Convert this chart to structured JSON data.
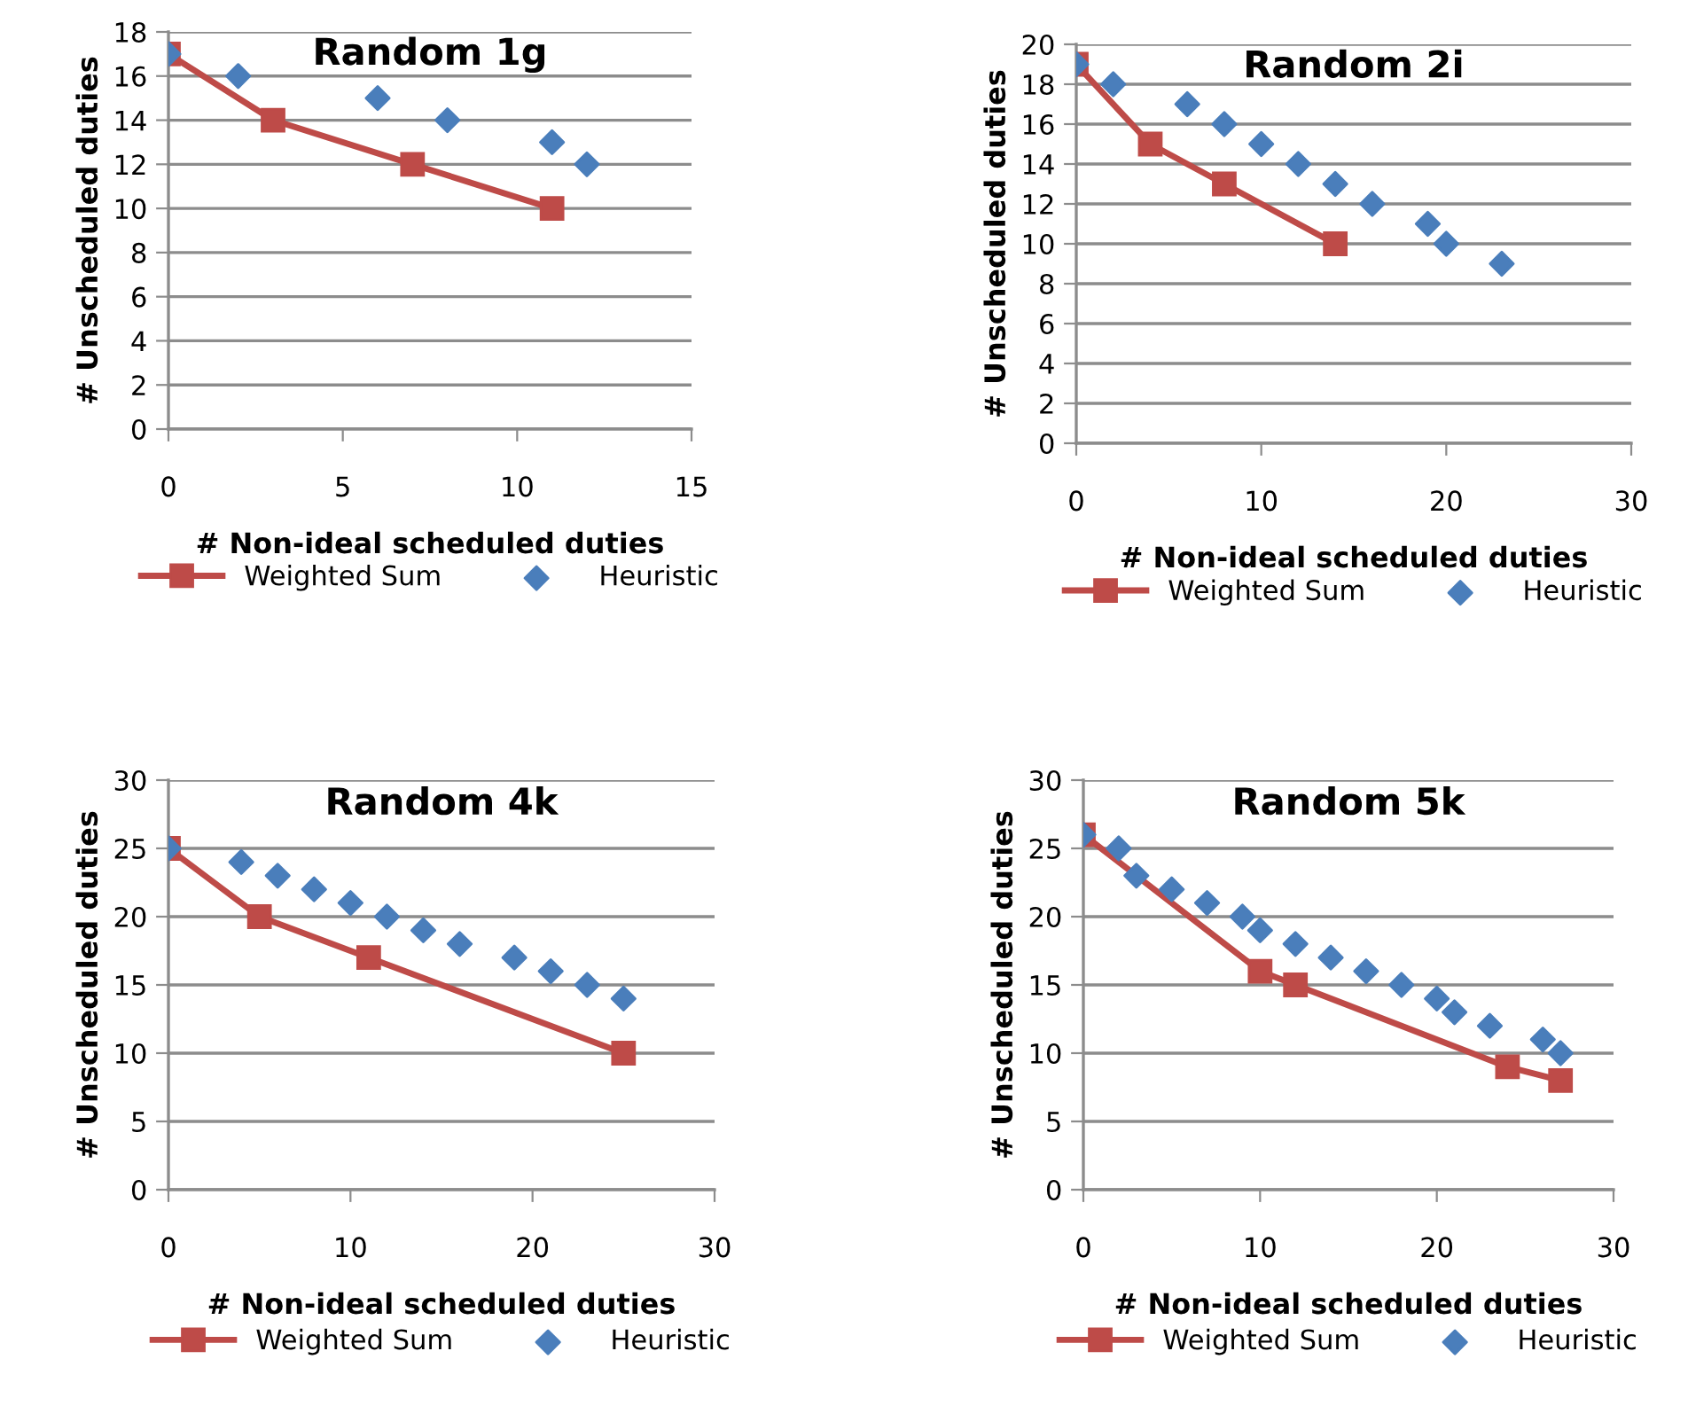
{
  "chart_data": [
    {
      "type": "line",
      "title": "Random 1g",
      "xlabel": "# Non-ideal scheduled duties",
      "ylabel": "# Unscheduled duties",
      "xlim": [
        0,
        15
      ],
      "xticks": [
        0,
        5,
        10,
        15
      ],
      "ylim": [
        0,
        18
      ],
      "yticks": [
        0,
        2,
        4,
        6,
        8,
        10,
        12,
        14,
        16,
        18
      ],
      "grid": "y",
      "legend": "bottom",
      "series": [
        {
          "name": "Weighted Sum",
          "marker": "square",
          "color": "#be4b48",
          "x": [
            0,
            3,
            7,
            11
          ],
          "values": [
            17,
            14,
            12,
            10
          ]
        },
        {
          "name": "Heuristic",
          "type": "scatter",
          "marker": "diamond",
          "color": "#4a7ebb",
          "x": [
            0,
            2,
            6,
            8,
            11,
            12
          ],
          "values": [
            17,
            16,
            15,
            14,
            13,
            12
          ]
        }
      ]
    },
    {
      "type": "line",
      "title": "Random 2i",
      "xlabel": "# Non-ideal scheduled duties",
      "ylabel": "# Unscheduled duties",
      "xlim": [
        0,
        30
      ],
      "xticks": [
        0,
        10,
        20,
        30
      ],
      "ylim": [
        0,
        20
      ],
      "yticks": [
        0,
        2,
        4,
        6,
        8,
        10,
        12,
        14,
        16,
        18,
        20
      ],
      "grid": "y",
      "legend": "bottom",
      "series": [
        {
          "name": "Weighted Sum",
          "marker": "square",
          "color": "#be4b48",
          "x": [
            0,
            4,
            8,
            14
          ],
          "values": [
            19,
            15,
            13,
            10
          ]
        },
        {
          "name": "Heuristic",
          "type": "scatter",
          "marker": "diamond",
          "color": "#4a7ebb",
          "x": [
            0,
            2,
            6,
            8,
            10,
            12,
            14,
            16,
            19,
            20,
            23
          ],
          "values": [
            19,
            18,
            17,
            16,
            15,
            14,
            13,
            12,
            11,
            10,
            9
          ]
        }
      ]
    },
    {
      "type": "line",
      "title": "Random 4k",
      "xlabel": "# Non-ideal scheduled duties",
      "ylabel": "# Unscheduled duties",
      "xlim": [
        0,
        30
      ],
      "xticks": [
        0,
        10,
        20,
        30
      ],
      "ylim": [
        0,
        30
      ],
      "yticks": [
        0,
        5,
        10,
        15,
        20,
        25,
        30
      ],
      "grid": "y",
      "legend": "bottom",
      "series": [
        {
          "name": "Weighted Sum",
          "marker": "square",
          "color": "#be4b48",
          "x": [
            0,
            5,
            11,
            25
          ],
          "values": [
            25,
            20,
            17,
            10
          ]
        },
        {
          "name": "Heuristic",
          "type": "scatter",
          "marker": "diamond",
          "color": "#4a7ebb",
          "x": [
            0,
            4,
            6,
            8,
            10,
            12,
            14,
            16,
            19,
            21,
            23,
            25
          ],
          "values": [
            25,
            24,
            23,
            22,
            21,
            20,
            19,
            18,
            17,
            16,
            15,
            14
          ]
        }
      ]
    },
    {
      "type": "line",
      "title": "Random 5k",
      "xlabel": "# Non-ideal scheduled duties",
      "ylabel": "# Unscheduled duties",
      "xlim": [
        0,
        30
      ],
      "xticks": [
        0,
        10,
        20,
        30
      ],
      "ylim": [
        0,
        30
      ],
      "yticks": [
        0,
        5,
        10,
        15,
        20,
        25,
        30
      ],
      "grid": "y",
      "legend": "bottom",
      "series": [
        {
          "name": "Weighted Sum",
          "marker": "square",
          "color": "#be4b48",
          "x": [
            0,
            10,
            12,
            24,
            27
          ],
          "values": [
            26,
            16,
            15,
            9,
            8
          ]
        },
        {
          "name": "Heuristic",
          "type": "scatter",
          "marker": "diamond",
          "color": "#4a7ebb",
          "x": [
            0,
            2,
            3,
            5,
            7,
            9,
            10,
            12,
            14,
            16,
            18,
            20,
            21,
            23,
            26,
            27
          ],
          "values": [
            26,
            25,
            23,
            22,
            21,
            20,
            19,
            18,
            17,
            16,
            15,
            14,
            13,
            12,
            11,
            10
          ]
        }
      ]
    }
  ]
}
